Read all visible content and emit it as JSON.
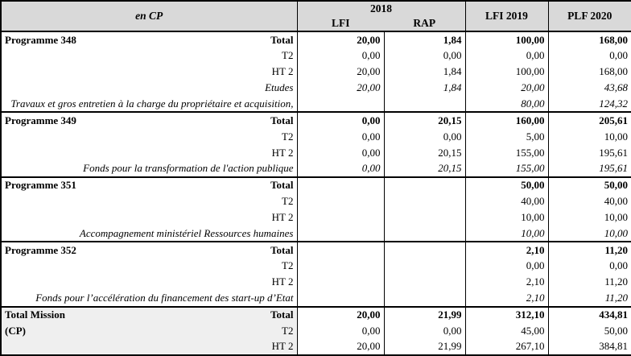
{
  "header": {
    "unit_label": "en CP",
    "year_2018": "2018",
    "col_lfi": "LFI",
    "col_rap": "RAP",
    "col_lfi_2019": "LFI 2019",
    "col_plf_2020": "PLF 2020"
  },
  "colors": {
    "header_bg": "#d9d9d9",
    "total_mission_bg": "#efefef",
    "border": "#000000"
  },
  "table": {
    "sections": [
      {
        "name": "Programme 348",
        "gray": false,
        "rows": [
          {
            "left": "Programme 348",
            "right": "Total",
            "style": "bold",
            "values": [
              "20,00",
              "1,84",
              "100,00",
              "168,00"
            ]
          },
          {
            "left": "",
            "right": "T2",
            "style": "normal",
            "values": [
              "0,00",
              "0,00",
              "0,00",
              "0,00"
            ]
          },
          {
            "left": "",
            "right": "HT 2",
            "style": "normal",
            "values": [
              "20,00",
              "1,84",
              "100,00",
              "168,00"
            ]
          },
          {
            "left": "",
            "right": "Etudes",
            "style": "italic",
            "values": [
              "20,00",
              "1,84",
              "20,00",
              "43,68"
            ]
          },
          {
            "left": "",
            "right": "Travaux et gros entretien à la charge du propriétaire et acquisition,",
            "style": "italic",
            "values": [
              "",
              "",
              "80,00",
              "124,32"
            ]
          }
        ]
      },
      {
        "name": "Programme 349",
        "gray": false,
        "rows": [
          {
            "left": "Programme 349",
            "right": "Total",
            "style": "bold",
            "values": [
              "0,00",
              "20,15",
              "160,00",
              "205,61"
            ]
          },
          {
            "left": "",
            "right": "T2",
            "style": "normal",
            "values": [
              "0,00",
              "0,00",
              "5,00",
              "10,00"
            ]
          },
          {
            "left": "",
            "right": "HT 2",
            "style": "normal",
            "values": [
              "0,00",
              "20,15",
              "155,00",
              "195,61"
            ]
          },
          {
            "left": "",
            "right": "Fonds pour la transformation de l'action publique",
            "style": "italic",
            "values": [
              "0,00",
              "20,15",
              "155,00",
              "195,61"
            ]
          }
        ]
      },
      {
        "name": "Programme 351",
        "gray": false,
        "rows": [
          {
            "left": "Programme 351",
            "right": "Total",
            "style": "bold",
            "values": [
              "",
              "",
              "50,00",
              "50,00"
            ]
          },
          {
            "left": "",
            "right": "T2",
            "style": "normal",
            "values": [
              "",
              "",
              "40,00",
              "40,00"
            ]
          },
          {
            "left": "",
            "right": "HT 2",
            "style": "normal",
            "values": [
              "",
              "",
              "10,00",
              "10,00"
            ]
          },
          {
            "left": "",
            "right": "Accompagnement ministériel Ressources humaines",
            "style": "italic",
            "values": [
              "",
              "",
              "10,00",
              "10,00"
            ]
          }
        ]
      },
      {
        "name": "Programme 352",
        "gray": false,
        "rows": [
          {
            "left": "Programme 352",
            "right": "Total",
            "style": "bold",
            "values": [
              "",
              "",
              "2,10",
              "11,20"
            ]
          },
          {
            "left": "",
            "right": "T2",
            "style": "normal",
            "values": [
              "",
              "",
              "0,00",
              "0,00"
            ]
          },
          {
            "left": "",
            "right": "HT 2",
            "style": "normal",
            "values": [
              "",
              "",
              "2,10",
              "11,20"
            ]
          },
          {
            "left": "",
            "right": "Fonds pour l’accélération du financement des start-up d’Etat",
            "style": "italic",
            "values": [
              "",
              "",
              "2,10",
              "11,20"
            ]
          }
        ]
      },
      {
        "name": "Total Mission (CP)",
        "gray": true,
        "rows": [
          {
            "left": "Total Mission",
            "right": "Total",
            "style": "bold",
            "values": [
              "20,00",
              "21,99",
              "312,10",
              "434,81"
            ]
          },
          {
            "left": "(CP)",
            "right": "T2",
            "style": "normal",
            "values": [
              "0,00",
              "0,00",
              "45,00",
              "50,00"
            ]
          },
          {
            "left": "",
            "right": "HT 2",
            "style": "normal",
            "values": [
              "20,00",
              "21,99",
              "267,10",
              "384,81"
            ]
          }
        ]
      }
    ]
  }
}
